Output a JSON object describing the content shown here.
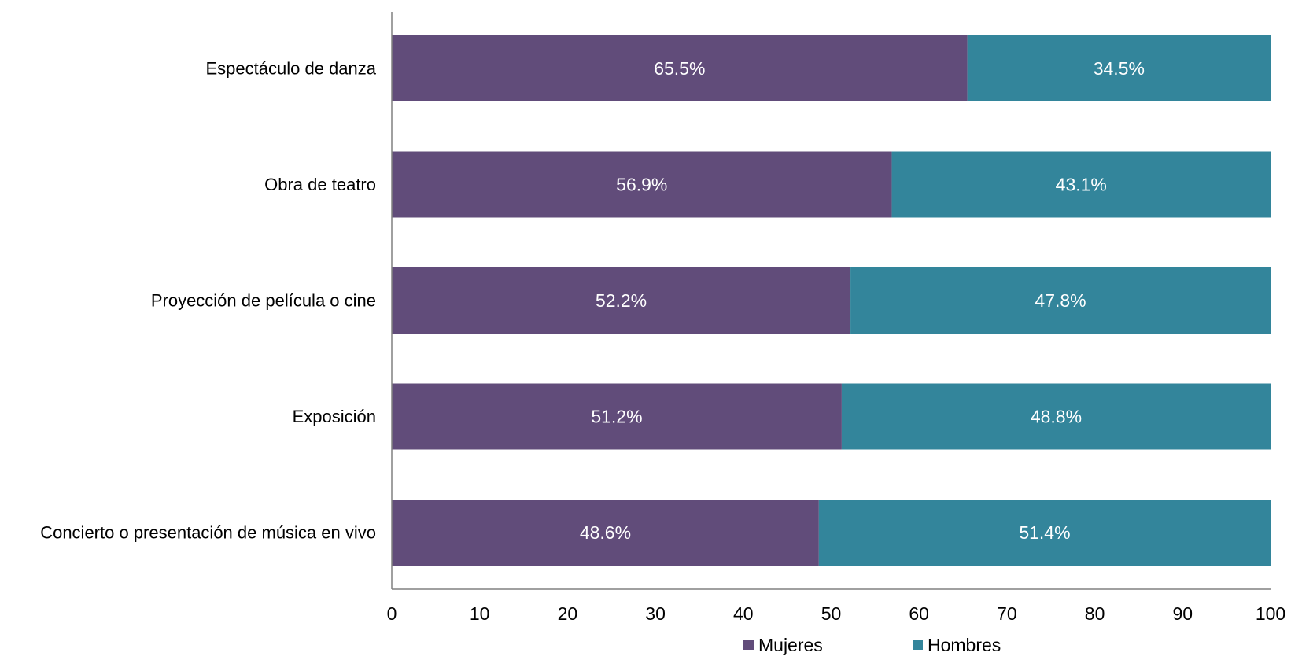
{
  "chart_data": {
    "type": "bar",
    "orientation": "horizontal",
    "stacked": true,
    "categories": [
      "Espectáculo de danza",
      "Obra de teatro",
      "Proyección de película o cine",
      "Exposición",
      "Concierto o presentación de música en vivo"
    ],
    "series": [
      {
        "name": "Mujeres",
        "color": "#614c7a",
        "values": [
          65.5,
          56.9,
          52.2,
          51.2,
          48.6
        ],
        "labels": [
          "65.5%",
          "56.9%",
          "52.2%",
          "51.2%",
          "48.6%"
        ]
      },
      {
        "name": "Hombres",
        "color": "#33859b",
        "values": [
          34.5,
          43.1,
          47.8,
          48.8,
          51.4
        ],
        "labels": [
          "34.5%",
          "43.1%",
          "47.8%",
          "48.8%",
          "51.4%"
        ]
      }
    ],
    "xlim": [
      0,
      100
    ],
    "xticks": [
      "0",
      "10",
      "20",
      "30",
      "40",
      "50",
      "60",
      "70",
      "80",
      "90",
      "100"
    ],
    "title": "",
    "xlabel": "",
    "ylabel": "",
    "grid": false,
    "legend": "bottom"
  }
}
